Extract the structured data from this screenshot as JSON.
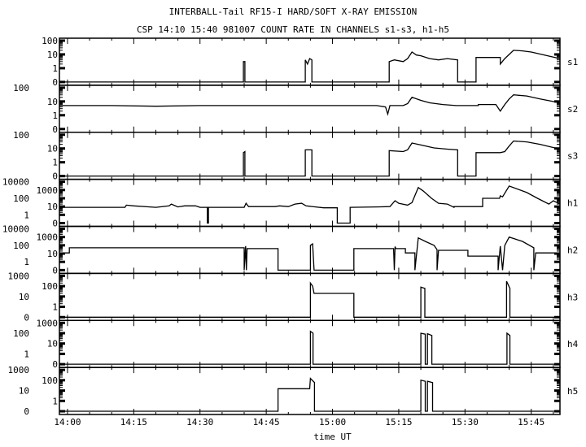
{
  "chart_data": {
    "type": "line",
    "title": "INTERBALL-Tail RF15-I HARD/SOFT X-RAY EMISSION",
    "subtitle": "CSP 14:10 15:40 981007  COUNT RATE IN CHANNELS s1-s3, h1-h5",
    "xlabel": "time UT",
    "xlim": [
      "13:58:10",
      "15:51:30"
    ],
    "xticks": [
      "14:00",
      "14:15",
      "14:30",
      "14:45",
      "15:00",
      "15:15",
      "15:30",
      "15:45"
    ],
    "grid": false,
    "yscale": "log (with 0 at bottom)",
    "series": [
      {
        "name": "s1",
        "yticks": [
          "0",
          "1",
          "10",
          "100"
        ],
        "points": [
          [
            "13:58:10",
            0
          ],
          [
            "14:39:50",
            0
          ],
          [
            "14:39:50",
            3
          ],
          [
            "14:40:10",
            3
          ],
          [
            "14:40:10",
            0
          ],
          [
            "14:53:50",
            0
          ],
          [
            "14:53:50",
            4
          ],
          [
            "14:54:20",
            2
          ],
          [
            "14:54:50",
            5
          ],
          [
            "14:55:20",
            4
          ],
          [
            "14:55:20",
            0
          ],
          [
            "15:12:50",
            0
          ],
          [
            "15:12:50",
            3
          ],
          [
            "15:14",
            4
          ],
          [
            "15:16",
            3
          ],
          [
            "15:17",
            5
          ],
          [
            "15:18",
            15
          ],
          [
            "15:19",
            9
          ],
          [
            "15:20",
            8
          ],
          [
            "15:22",
            5
          ],
          [
            "15:24",
            4
          ],
          [
            "15:26",
            5
          ],
          [
            "15:28:20",
            4
          ],
          [
            "15:28:20",
            0
          ],
          [
            "15:32:30",
            0
          ],
          [
            "15:32:30",
            6
          ],
          [
            "15:38",
            6
          ],
          [
            "15:38",
            2
          ],
          [
            "15:39",
            5
          ],
          [
            "15:40",
            10
          ],
          [
            "15:41",
            20
          ],
          [
            "15:43",
            18
          ],
          [
            "15:45",
            15
          ],
          [
            "15:48",
            9
          ],
          [
            "15:51:30",
            5
          ]
        ]
      },
      {
        "name": "s2",
        "yticks": [
          "0",
          "1",
          "10",
          "100"
        ],
        "points": [
          [
            "13:58:10",
            5
          ],
          [
            "14:10",
            5
          ],
          [
            "14:20",
            4.5
          ],
          [
            "14:30",
            5
          ],
          [
            "14:40",
            5
          ],
          [
            "14:50",
            5
          ],
          [
            "14:55",
            5
          ],
          [
            "15:00",
            5
          ],
          [
            "15:10",
            5
          ],
          [
            "15:12",
            4
          ],
          [
            "15:12:30",
            1.2
          ],
          [
            "15:13",
            5
          ],
          [
            "15:16",
            5
          ],
          [
            "15:17",
            7
          ],
          [
            "15:18",
            20
          ],
          [
            "15:20",
            12
          ],
          [
            "15:22",
            8
          ],
          [
            "15:25",
            6
          ],
          [
            "15:28",
            5
          ],
          [
            "15:33",
            5
          ],
          [
            "15:33",
            6
          ],
          [
            "15:37",
            6
          ],
          [
            "15:38",
            2
          ],
          [
            "15:39",
            6
          ],
          [
            "15:40",
            15
          ],
          [
            "15:41",
            30
          ],
          [
            "15:44",
            25
          ],
          [
            "15:47",
            15
          ],
          [
            "15:51:30",
            8
          ]
        ]
      },
      {
        "name": "s3",
        "yticks": [
          "0",
          "1",
          "10",
          "100"
        ],
        "points": [
          [
            "13:58:10",
            0
          ],
          [
            "14:39:50",
            0
          ],
          [
            "14:39:50",
            5
          ],
          [
            "14:40:10",
            6
          ],
          [
            "14:40:10",
            0
          ],
          [
            "14:53:50",
            0
          ],
          [
            "14:53:50",
            8
          ],
          [
            "14:55:20",
            8
          ],
          [
            "14:55:20",
            0
          ],
          [
            "15:12:50",
            0
          ],
          [
            "15:12:50",
            7
          ],
          [
            "15:16",
            6
          ],
          [
            "15:17",
            8
          ],
          [
            "15:18",
            25
          ],
          [
            "15:20",
            18
          ],
          [
            "15:23",
            11
          ],
          [
            "15:26",
            9
          ],
          [
            "15:28:20",
            8
          ],
          [
            "15:28:20",
            0
          ],
          [
            "15:32:30",
            0
          ],
          [
            "15:32:30",
            5
          ],
          [
            "15:38",
            5
          ],
          [
            "15:39",
            6
          ],
          [
            "15:40",
            15
          ],
          [
            "15:41",
            35
          ],
          [
            "15:44",
            30
          ],
          [
            "15:47",
            20
          ],
          [
            "15:51:30",
            9
          ]
        ]
      },
      {
        "name": "h1",
        "yticks": [
          "0",
          "1",
          "10",
          "100",
          "1000",
          "10000"
        ],
        "points": [
          [
            "13:58:10",
            8
          ],
          [
            "14:10",
            8
          ],
          [
            "14:13",
            8
          ],
          [
            "14:13:20",
            15
          ],
          [
            "14:15",
            12
          ],
          [
            "14:20",
            8
          ],
          [
            "14:23",
            12
          ],
          [
            "14:23:30",
            20
          ],
          [
            "14:25",
            9
          ],
          [
            "14:26:30",
            12
          ],
          [
            "14:29",
            12
          ],
          [
            "14:30",
            8
          ],
          [
            "14:31:40",
            8
          ],
          [
            "14:31:40",
            0
          ],
          [
            "14:31:55",
            0
          ],
          [
            "14:31:55",
            8
          ],
          [
            "14:40",
            8
          ],
          [
            "14:40:25",
            25
          ],
          [
            "14:41",
            10
          ],
          [
            "14:47",
            10
          ],
          [
            "14:48",
            12
          ],
          [
            "14:50",
            10
          ],
          [
            "14:51:30",
            20
          ],
          [
            "14:53",
            25
          ],
          [
            "14:54",
            12
          ],
          [
            "14:58",
            7
          ],
          [
            "15:01:05",
            7
          ],
          [
            "15:01:05",
            0
          ],
          [
            "15:04",
            0
          ],
          [
            "15:04",
            8
          ],
          [
            "15:10",
            9
          ],
          [
            "15:13",
            10
          ],
          [
            "15:14:10",
            50
          ],
          [
            "15:15",
            25
          ],
          [
            "15:17",
            15
          ],
          [
            "15:18",
            30
          ],
          [
            "15:19:25",
            2000
          ],
          [
            "15:20:30",
            800
          ],
          [
            "15:22:25",
            100
          ],
          [
            "15:24",
            25
          ],
          [
            "15:26",
            20
          ],
          [
            "15:27:30",
            8
          ],
          [
            "15:27:30",
            10
          ],
          [
            "15:34",
            10
          ],
          [
            "15:34",
            100
          ],
          [
            "15:37:50",
            100
          ],
          [
            "15:38",
            200
          ],
          [
            "15:38:30",
            150
          ],
          [
            "15:40",
            3000
          ],
          [
            "15:44",
            500
          ],
          [
            "15:46:25",
            100
          ],
          [
            "15:49",
            20
          ],
          [
            "15:50",
            50
          ],
          [
            "15:51:30",
            20
          ]
        ]
      },
      {
        "name": "h2",
        "yticks": [
          "0",
          "1",
          "10",
          "100",
          "1000",
          "10000"
        ],
        "points": [
          [
            "13:58:10",
            12
          ],
          [
            "14:00:25",
            12
          ],
          [
            "14:00:25",
            50
          ],
          [
            "14:40",
            50
          ],
          [
            "14:40",
            0
          ],
          [
            "14:40:20",
            80
          ],
          [
            "14:40:30",
            0
          ],
          [
            "14:40:40",
            40
          ],
          [
            "14:47:40",
            40
          ],
          [
            "14:47:40",
            0
          ],
          [
            "14:55",
            0
          ],
          [
            "14:55",
            100
          ],
          [
            "14:55:30",
            150
          ],
          [
            "14:55:50",
            0
          ],
          [
            "15:04:50",
            0
          ],
          [
            "15:04:50",
            40
          ],
          [
            "15:13:50",
            40
          ],
          [
            "15:14",
            0
          ],
          [
            "15:14:10",
            70
          ],
          [
            "15:14:20",
            40
          ],
          [
            "15:16:30",
            40
          ],
          [
            "15:16:30",
            12
          ],
          [
            "15:18:40",
            12
          ],
          [
            "15:18:40",
            0
          ],
          [
            "15:19:25",
            800
          ],
          [
            "15:21",
            300
          ],
          [
            "15:23",
            100
          ],
          [
            "15:23:40",
            30
          ],
          [
            "15:23:40",
            0
          ],
          [
            "15:24",
            25
          ],
          [
            "15:30:40",
            25
          ],
          [
            "15:30:40",
            5
          ],
          [
            "15:37:30",
            5
          ],
          [
            "15:37:30",
            0
          ],
          [
            "15:38",
            80
          ],
          [
            "15:38:30",
            0
          ],
          [
            "15:39",
            100
          ],
          [
            "15:40",
            1000
          ],
          [
            "15:43",
            300
          ],
          [
            "15:45:35",
            50
          ],
          [
            "15:45:35",
            0
          ],
          [
            "15:46",
            12
          ],
          [
            "15:51:30",
            12
          ]
        ]
      },
      {
        "name": "h3",
        "yticks": [
          "0",
          "1",
          "10",
          "100",
          "1000"
        ],
        "points": [
          [
            "13:58:10",
            0
          ],
          [
            "14:55",
            0
          ],
          [
            "14:55",
            200
          ],
          [
            "14:55:30",
            100
          ],
          [
            "14:55:50",
            20
          ],
          [
            "15:04:50",
            20
          ],
          [
            "15:04:50",
            0
          ],
          [
            "15:20",
            0
          ],
          [
            "15:20",
            80
          ],
          [
            "15:20:55",
            60
          ],
          [
            "15:20:55",
            0
          ],
          [
            "15:39:25",
            0
          ],
          [
            "15:39:25",
            300
          ],
          [
            "15:40:10",
            60
          ],
          [
            "15:40:10",
            0
          ],
          [
            "15:51:30",
            0
          ]
        ]
      },
      {
        "name": "h4",
        "yticks": [
          "0",
          "1",
          "10",
          "100",
          "1000"
        ],
        "points": [
          [
            "13:58:10",
            0
          ],
          [
            "14:55",
            0
          ],
          [
            "14:55",
            150
          ],
          [
            "14:55:35",
            100
          ],
          [
            "14:55:35",
            0
          ],
          [
            "15:20",
            0
          ],
          [
            "15:20",
            100
          ],
          [
            "15:21",
            80
          ],
          [
            "15:21",
            0
          ],
          [
            "15:21:30",
            0
          ],
          [
            "15:21:30",
            90
          ],
          [
            "15:22:30",
            60
          ],
          [
            "15:22:30",
            0
          ],
          [
            "15:39:30",
            0
          ],
          [
            "15:39:30",
            100
          ],
          [
            "15:40:10",
            60
          ],
          [
            "15:40:10",
            0
          ],
          [
            "15:51:30",
            0
          ]
        ]
      },
      {
        "name": "h5",
        "yticks": [
          "0",
          "1",
          "10",
          "100",
          "1000"
        ],
        "points": [
          [
            "13:58:10",
            0
          ],
          [
            "14:47:40",
            0
          ],
          [
            "14:47:40",
            15
          ],
          [
            "14:54:50",
            15
          ],
          [
            "14:55",
            150
          ],
          [
            "14:55:55",
            60
          ],
          [
            "14:55:55",
            0
          ],
          [
            "15:20",
            0
          ],
          [
            "15:20",
            100
          ],
          [
            "15:21",
            80
          ],
          [
            "15:21",
            0
          ],
          [
            "15:21:30",
            0
          ],
          [
            "15:21:30",
            80
          ],
          [
            "15:22:40",
            60
          ],
          [
            "15:22:40",
            0
          ],
          [
            "15:51:30",
            0
          ]
        ]
      }
    ]
  }
}
